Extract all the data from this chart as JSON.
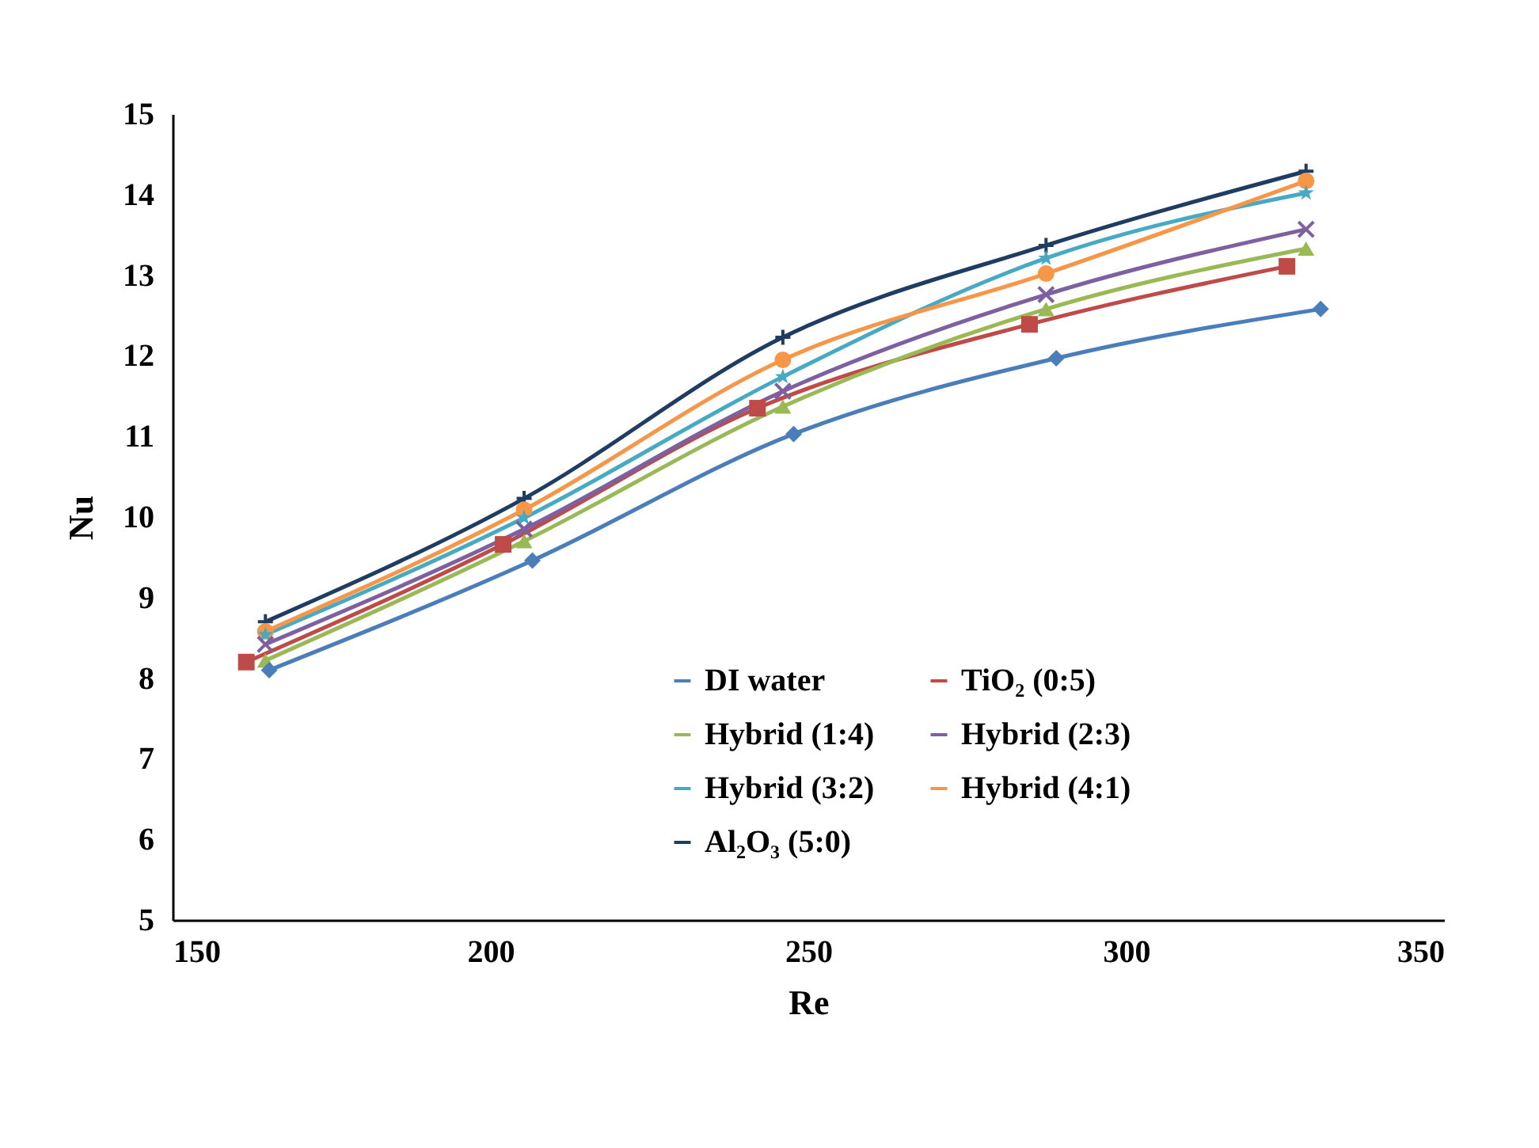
{
  "chart_data": {
    "type": "line",
    "xlabel": "Re",
    "ylabel": "Nu",
    "xlim": [
      150,
      350
    ],
    "xticks": [
      150,
      200,
      250,
      300,
      350
    ],
    "ylim": [
      5,
      15
    ],
    "yticks": [
      5,
      6,
      7,
      8,
      9,
      10,
      11,
      12,
      13,
      14,
      15
    ],
    "grid": false,
    "legend": "bottom right",
    "line_style": "solid",
    "series": [
      {
        "name": "DI water",
        "color": "#4a7ebb",
        "marker": "diamond",
        "x": [
          165.2,
          206.6,
          247.7,
          289,
          330.6
        ],
        "values": [
          8.1,
          9.46,
          11.03,
          11.97,
          12.58
        ]
      },
      {
        "name": "TiO₂ (0:5)",
        "color": "#be4b48",
        "marker": "square",
        "x": [
          161.6,
          202,
          242,
          284.8,
          325.3
        ],
        "values": [
          8.2,
          9.66,
          11.35,
          12.39,
          13.11
        ]
      },
      {
        "name": "Hybrid (1:4)",
        "color": "#98b954",
        "marker": "triangle",
        "x": [
          164.6,
          205.3,
          246,
          287.4,
          328.3
        ],
        "values": [
          8.22,
          9.7,
          11.37,
          12.58,
          13.33
        ]
      },
      {
        "name": "Hybrid (2:3)",
        "color": "#7d60a0",
        "marker": "cross",
        "x": [
          164.6,
          205.3,
          246,
          287.4,
          328.3
        ],
        "values": [
          8.42,
          9.85,
          11.56,
          12.76,
          13.57
        ]
      },
      {
        "name": "Hybrid (3:2)",
        "color": "#46aac5",
        "marker": "star",
        "x": [
          164.6,
          205.3,
          246,
          287.4,
          328.3
        ],
        "values": [
          8.54,
          9.99,
          11.74,
          13.21,
          14.02
        ]
      },
      {
        "name": "Hybrid (4:1)",
        "color": "#f79646",
        "marker": "circle",
        "x": [
          164.6,
          205.3,
          246,
          287.4,
          328.3
        ],
        "values": [
          8.58,
          10.09,
          11.95,
          13.02,
          14.17
        ]
      },
      {
        "name": "Al₂O₃ (5:0)",
        "color": "#1f3d63",
        "marker": "plus",
        "x": [
          164.6,
          205.3,
          246,
          287.4,
          328.3
        ],
        "values": [
          8.7,
          10.23,
          12.23,
          13.37,
          14.29
        ]
      }
    ]
  }
}
